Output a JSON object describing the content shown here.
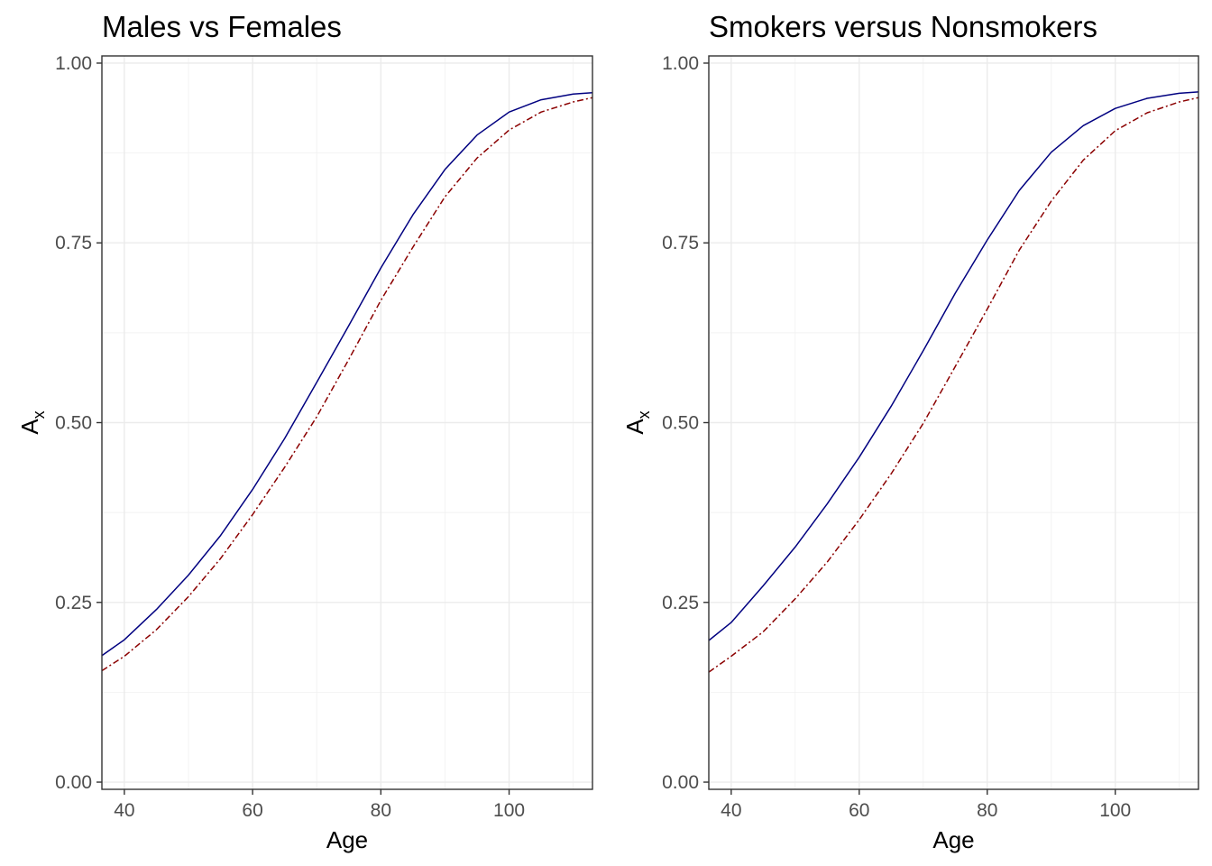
{
  "chart_data": [
    {
      "type": "line",
      "title": "Males vs Females",
      "xlabel": "Age",
      "ylabel": "A",
      "ylabel_subscript": "x",
      "xlim": [
        36.5,
        113
      ],
      "ylim": [
        -0.01,
        1.01
      ],
      "x_ticks": [
        40,
        60,
        80,
        100
      ],
      "y_ticks": [
        "0.00",
        "0.25",
        "0.50",
        "0.75",
        "1.00"
      ],
      "grid": true,
      "legend": "none",
      "series": [
        {
          "color": "#000080",
          "linestyle": "solid",
          "x": [
            36.5,
            40,
            45,
            50,
            55,
            60,
            65,
            70,
            75,
            80,
            85,
            90,
            95,
            100,
            105,
            110,
            113
          ],
          "y": [
            0.176,
            0.198,
            0.24,
            0.288,
            0.343,
            0.407,
            0.478,
            0.556,
            0.635,
            0.715,
            0.789,
            0.852,
            0.9,
            0.932,
            0.949,
            0.957,
            0.959
          ]
        },
        {
          "color": "#8b0000",
          "linestyle": "dashdot",
          "x": [
            36.5,
            40,
            45,
            50,
            55,
            60,
            65,
            70,
            75,
            80,
            85,
            90,
            95,
            100,
            105,
            110,
            113
          ],
          "y": [
            0.155,
            0.175,
            0.212,
            0.258,
            0.311,
            0.372,
            0.438,
            0.508,
            0.588,
            0.67,
            0.744,
            0.814,
            0.868,
            0.907,
            0.932,
            0.946,
            0.952
          ]
        }
      ]
    },
    {
      "type": "line",
      "title": "Smokers versus Nonsmokers",
      "xlabel": "Age",
      "ylabel": "A",
      "ylabel_subscript": "x",
      "xlim": [
        36.5,
        113
      ],
      "ylim": [
        -0.01,
        1.01
      ],
      "x_ticks": [
        40,
        60,
        80,
        100
      ],
      "y_ticks": [
        "0.00",
        "0.25",
        "0.50",
        "0.75",
        "1.00"
      ],
      "grid": true,
      "legend": "none",
      "series": [
        {
          "color": "#000080",
          "linestyle": "solid",
          "x": [
            36.5,
            40,
            45,
            50,
            55,
            60,
            65,
            70,
            75,
            80,
            85,
            90,
            95,
            100,
            105,
            110,
            113
          ],
          "y": [
            0.197,
            0.222,
            0.273,
            0.327,
            0.387,
            0.452,
            0.523,
            0.6,
            0.68,
            0.754,
            0.823,
            0.876,
            0.913,
            0.937,
            0.951,
            0.958,
            0.96
          ]
        },
        {
          "color": "#8b0000",
          "linestyle": "dashdot",
          "x": [
            36.5,
            40,
            45,
            50,
            55,
            60,
            65,
            70,
            75,
            80,
            85,
            90,
            95,
            100,
            105,
            110,
            113
          ],
          "y": [
            0.153,
            0.175,
            0.209,
            0.255,
            0.306,
            0.365,
            0.429,
            0.499,
            0.578,
            0.658,
            0.74,
            0.808,
            0.865,
            0.906,
            0.931,
            0.946,
            0.952
          ]
        }
      ]
    }
  ]
}
